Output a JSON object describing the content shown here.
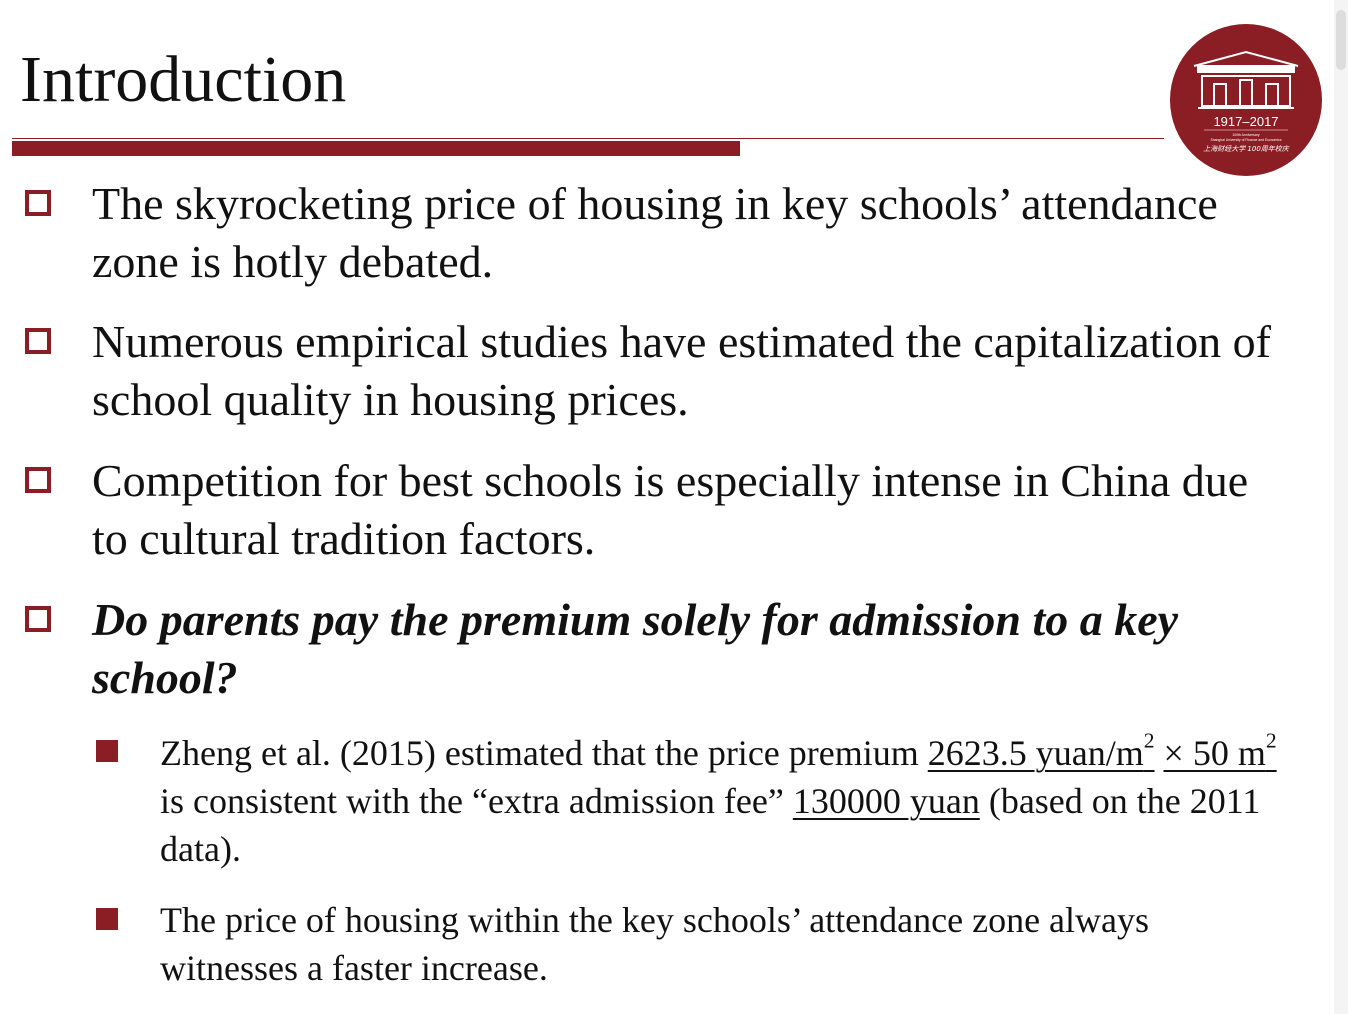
{
  "slide": {
    "title": "Introduction"
  },
  "logo": {
    "years": "1917–2017",
    "anniv_line": "100th Anniversary",
    "school_en": "Shanghai University of Finance and Economics",
    "school_cn": "上海财经大学 100周年校庆"
  },
  "bullets": [
    {
      "text": "The skyrocketing price of housing in key schools’ attendance zone is hotly debated."
    },
    {
      "text": "Numerous empirical studies have estimated the capitalization of school quality in housing prices."
    },
    {
      "text": "Competition for best schools is especially intense in China due to cultural tradition factors."
    },
    {
      "text": "Do parents pay the premium solely for admission to a key school?"
    }
  ],
  "sub_bullets": {
    "first": {
      "part1": "Zheng et al. (2015) estimated that the price premium ",
      "premium_value": "2623.5 yuan/m",
      "premium_sup": "2",
      "times": "× 50 m",
      "times_sup": "2",
      "part2": " is consistent with the “extra admission fee” ",
      "fee": "130000 yuan",
      "part3": " (based on the 2011 data)."
    },
    "second": {
      "text": "The price of housing within the key schools’ attendance zone always witnesses a faster increase."
    }
  },
  "colors": {
    "accent": "#8a1e24",
    "text": "#111111"
  }
}
